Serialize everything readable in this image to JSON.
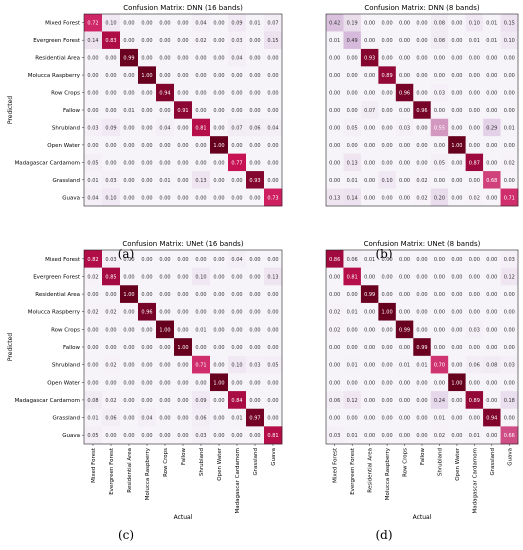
{
  "captions": [
    "(a)",
    "(b)",
    "(c)",
    "(d)"
  ],
  "colors": {
    "low": "#f7f4f9",
    "high": "#67001f",
    "mid": "#ce1256",
    "text_light": "#ffffff",
    "text_dark": "#333333"
  },
  "chart_data": [
    {
      "type": "heatmap",
      "title": "Confusion Matrix: DNN (16 bands)",
      "ylabel": "Predicted",
      "xlabel": "",
      "show_xticks": false,
      "show_yticks": true,
      "categories": [
        "Mixed Forest",
        "Evergreen Forest",
        "Residential Area",
        "Molucca Raspberry",
        "Row Crops",
        "Fallow",
        "Shrubland",
        "Open Water",
        "Madagascar Cardamom",
        "Grassland",
        "Guava"
      ],
      "values": [
        [
          0.72,
          0.1,
          0.0,
          0.0,
          0.0,
          0.0,
          0.04,
          0.0,
          0.09,
          0.01,
          0.07
        ],
        [
          0.14,
          0.83,
          0.0,
          0.0,
          0.0,
          0.0,
          0.02,
          0.0,
          0.03,
          0.0,
          0.15
        ],
        [
          0.0,
          0.0,
          0.99,
          0.0,
          0.0,
          0.0,
          0.0,
          0.0,
          0.04,
          0.0,
          0.0
        ],
        [
          0.0,
          0.0,
          0.0,
          1.0,
          0.0,
          0.0,
          0.0,
          0.0,
          0.0,
          0.0,
          0.0
        ],
        [
          0.0,
          0.0,
          0.0,
          0.0,
          0.94,
          0.0,
          0.0,
          0.0,
          0.0,
          0.0,
          0.0
        ],
        [
          0.0,
          0.0,
          0.01,
          0.0,
          0.0,
          0.91,
          0.0,
          0.0,
          0.0,
          0.0,
          0.0
        ],
        [
          0.03,
          0.09,
          0.0,
          0.0,
          0.04,
          0.0,
          0.81,
          0.0,
          0.07,
          0.06,
          0.04
        ],
        [
          0.0,
          0.0,
          0.0,
          0.0,
          0.0,
          0.0,
          0.0,
          1.0,
          0.0,
          0.0,
          0.0
        ],
        [
          0.05,
          0.0,
          0.0,
          0.0,
          0.0,
          0.0,
          0.0,
          0.0,
          0.77,
          0.0,
          0.0
        ],
        [
          0.01,
          0.03,
          0.0,
          0.0,
          0.01,
          0.0,
          0.13,
          0.0,
          0.0,
          0.93,
          0.0
        ],
        [
          0.04,
          0.1,
          0.0,
          0.0,
          0.0,
          0.0,
          0.0,
          0.0,
          0.0,
          0.0,
          0.73
        ]
      ]
    },
    {
      "type": "heatmap",
      "title": "Confusion Matrix: DNN (8 bands)",
      "ylabel": "",
      "xlabel": "",
      "show_xticks": false,
      "show_yticks": false,
      "categories": [
        "Mixed Forest",
        "Evergreen Forest",
        "Residential Area",
        "Molucca Raspberry",
        "Row Crops",
        "Fallow",
        "Shrubland",
        "Open Water",
        "Madagascar Cardamom",
        "Grassland",
        "Guava"
      ],
      "values": [
        [
          0.42,
          0.19,
          0.0,
          0.0,
          0.0,
          0.0,
          0.08,
          0.0,
          0.1,
          0.01,
          0.15
        ],
        [
          0.01,
          0.49,
          0.0,
          0.0,
          0.0,
          0.0,
          0.08,
          0.0,
          0.01,
          0.01,
          0.1
        ],
        [
          0.0,
          0.0,
          0.93,
          0.0,
          0.0,
          0.0,
          0.0,
          0.0,
          0.0,
          0.0,
          0.0
        ],
        [
          0.0,
          0.0,
          0.0,
          0.89,
          0.0,
          0.0,
          0.0,
          0.0,
          0.0,
          0.0,
          0.0
        ],
        [
          0.0,
          0.0,
          0.0,
          0.0,
          0.96,
          0.0,
          0.03,
          0.0,
          0.0,
          0.0,
          0.0
        ],
        [
          0.0,
          0.0,
          0.07,
          0.0,
          0.0,
          0.96,
          0.0,
          0.0,
          0.0,
          0.0,
          0.0
        ],
        [
          0.0,
          0.05,
          0.0,
          0.0,
          0.03,
          0.0,
          0.55,
          0.0,
          0.0,
          0.29,
          0.01
        ],
        [
          0.0,
          0.0,
          0.0,
          0.0,
          0.0,
          0.0,
          0.0,
          1.0,
          0.0,
          0.0,
          0.0
        ],
        [
          0.0,
          0.13,
          0.0,
          0.0,
          0.0,
          0.0,
          0.05,
          0.0,
          0.87,
          0.0,
          0.02
        ],
        [
          0.0,
          0.01,
          0.0,
          0.1,
          0.0,
          0.02,
          0.0,
          0.0,
          0.0,
          0.68,
          0.0
        ],
        [
          0.13,
          0.14,
          0.0,
          0.0,
          0.0,
          0.02,
          0.2,
          0.0,
          0.02,
          0.0,
          0.71
        ]
      ]
    },
    {
      "type": "heatmap",
      "title": "Confusion Matrix: UNet (16 bands)",
      "ylabel": "Predicted",
      "xlabel": "Actual",
      "show_xticks": true,
      "show_yticks": true,
      "categories": [
        "Mixed Forest",
        "Evergreen Forest",
        "Residential Area",
        "Molucca Raspberry",
        "Row Crops",
        "Fallow",
        "Shrubland",
        "Open Water",
        "Madagascar Cardamom",
        "Grassland",
        "Guava"
      ],
      "values": [
        [
          0.82,
          0.03,
          0.0,
          0.0,
          0.0,
          0.0,
          0.0,
          0.0,
          0.04,
          0.0,
          0.0
        ],
        [
          0.02,
          0.85,
          0.0,
          0.0,
          0.0,
          0.0,
          0.1,
          0.0,
          0.0,
          0.0,
          0.13
        ],
        [
          0.0,
          0.0,
          1.0,
          0.0,
          0.0,
          0.0,
          0.0,
          0.0,
          0.0,
          0.0,
          0.0
        ],
        [
          0.02,
          0.02,
          0.0,
          0.96,
          0.0,
          0.0,
          0.0,
          0.0,
          0.0,
          0.0,
          0.0
        ],
        [
          0.0,
          0.0,
          0.0,
          0.0,
          1.0,
          0.0,
          0.01,
          0.0,
          0.0,
          0.0,
          0.0
        ],
        [
          0.0,
          0.0,
          0.0,
          0.0,
          0.0,
          1.0,
          0.0,
          0.0,
          0.0,
          0.0,
          0.0
        ],
        [
          0.0,
          0.02,
          0.0,
          0.0,
          0.0,
          0.0,
          0.71,
          0.0,
          0.1,
          0.03,
          0.05
        ],
        [
          0.0,
          0.0,
          0.0,
          0.0,
          0.0,
          0.0,
          0.0,
          1.0,
          0.0,
          0.0,
          0.0
        ],
        [
          0.08,
          0.02,
          0.0,
          0.0,
          0.0,
          0.0,
          0.09,
          0.0,
          0.84,
          0.0,
          0.0
        ],
        [
          0.01,
          0.06,
          0.0,
          0.04,
          0.0,
          0.0,
          0.06,
          0.0,
          0.01,
          0.97,
          0.0
        ],
        [
          0.05,
          0.0,
          0.0,
          0.0,
          0.0,
          0.0,
          0.03,
          0.0,
          0.0,
          0.0,
          0.81
        ]
      ]
    },
    {
      "type": "heatmap",
      "title": "Confusion Matrix: UNet (8 bands)",
      "ylabel": "",
      "xlabel": "Actual",
      "show_xticks": true,
      "show_yticks": false,
      "categories": [
        "Mixed Forest",
        "Evergreen Forest",
        "Residential Area",
        "Molucca Raspberry",
        "Row Crops",
        "Fallow",
        "Shrubland",
        "Open Water",
        "Madagascar Cardamom",
        "Grassland",
        "Guava"
      ],
      "values": [
        [
          0.86,
          0.06,
          0.01,
          0.0,
          0.0,
          0.0,
          0.0,
          0.0,
          0.0,
          0.0,
          0.03
        ],
        [
          0.0,
          0.81,
          0.0,
          0.0,
          0.0,
          0.0,
          0.0,
          0.0,
          0.0,
          0.0,
          0.12
        ],
        [
          0.0,
          0.0,
          0.99,
          0.0,
          0.0,
          0.0,
          0.0,
          0.0,
          0.0,
          0.0,
          0.0
        ],
        [
          0.02,
          0.01,
          0.0,
          1.0,
          0.0,
          0.0,
          0.0,
          0.0,
          0.0,
          0.0,
          0.0
        ],
        [
          0.02,
          0.0,
          0.0,
          0.0,
          0.99,
          0.0,
          0.0,
          0.0,
          0.03,
          0.0,
          0.0
        ],
        [
          0.0,
          0.0,
          0.0,
          0.0,
          0.0,
          0.99,
          0.0,
          0.0,
          0.0,
          0.0,
          0.0
        ],
        [
          0.0,
          0.01,
          0.0,
          0.0,
          0.01,
          0.01,
          0.7,
          0.0,
          0.06,
          0.08,
          0.03
        ],
        [
          0.0,
          0.0,
          0.0,
          0.0,
          0.0,
          0.0,
          0.0,
          1.0,
          0.0,
          0.0,
          0.0
        ],
        [
          0.06,
          0.12,
          0.0,
          0.0,
          0.0,
          0.0,
          0.24,
          0.0,
          0.89,
          0.0,
          0.18
        ],
        [
          0.0,
          0.0,
          0.0,
          0.0,
          0.0,
          0.0,
          0.01,
          0.0,
          0.0,
          0.94,
          0.0
        ],
        [
          0.03,
          0.01,
          0.0,
          0.0,
          0.0,
          0.0,
          0.02,
          0.0,
          0.01,
          0.0,
          0.66
        ]
      ]
    }
  ]
}
